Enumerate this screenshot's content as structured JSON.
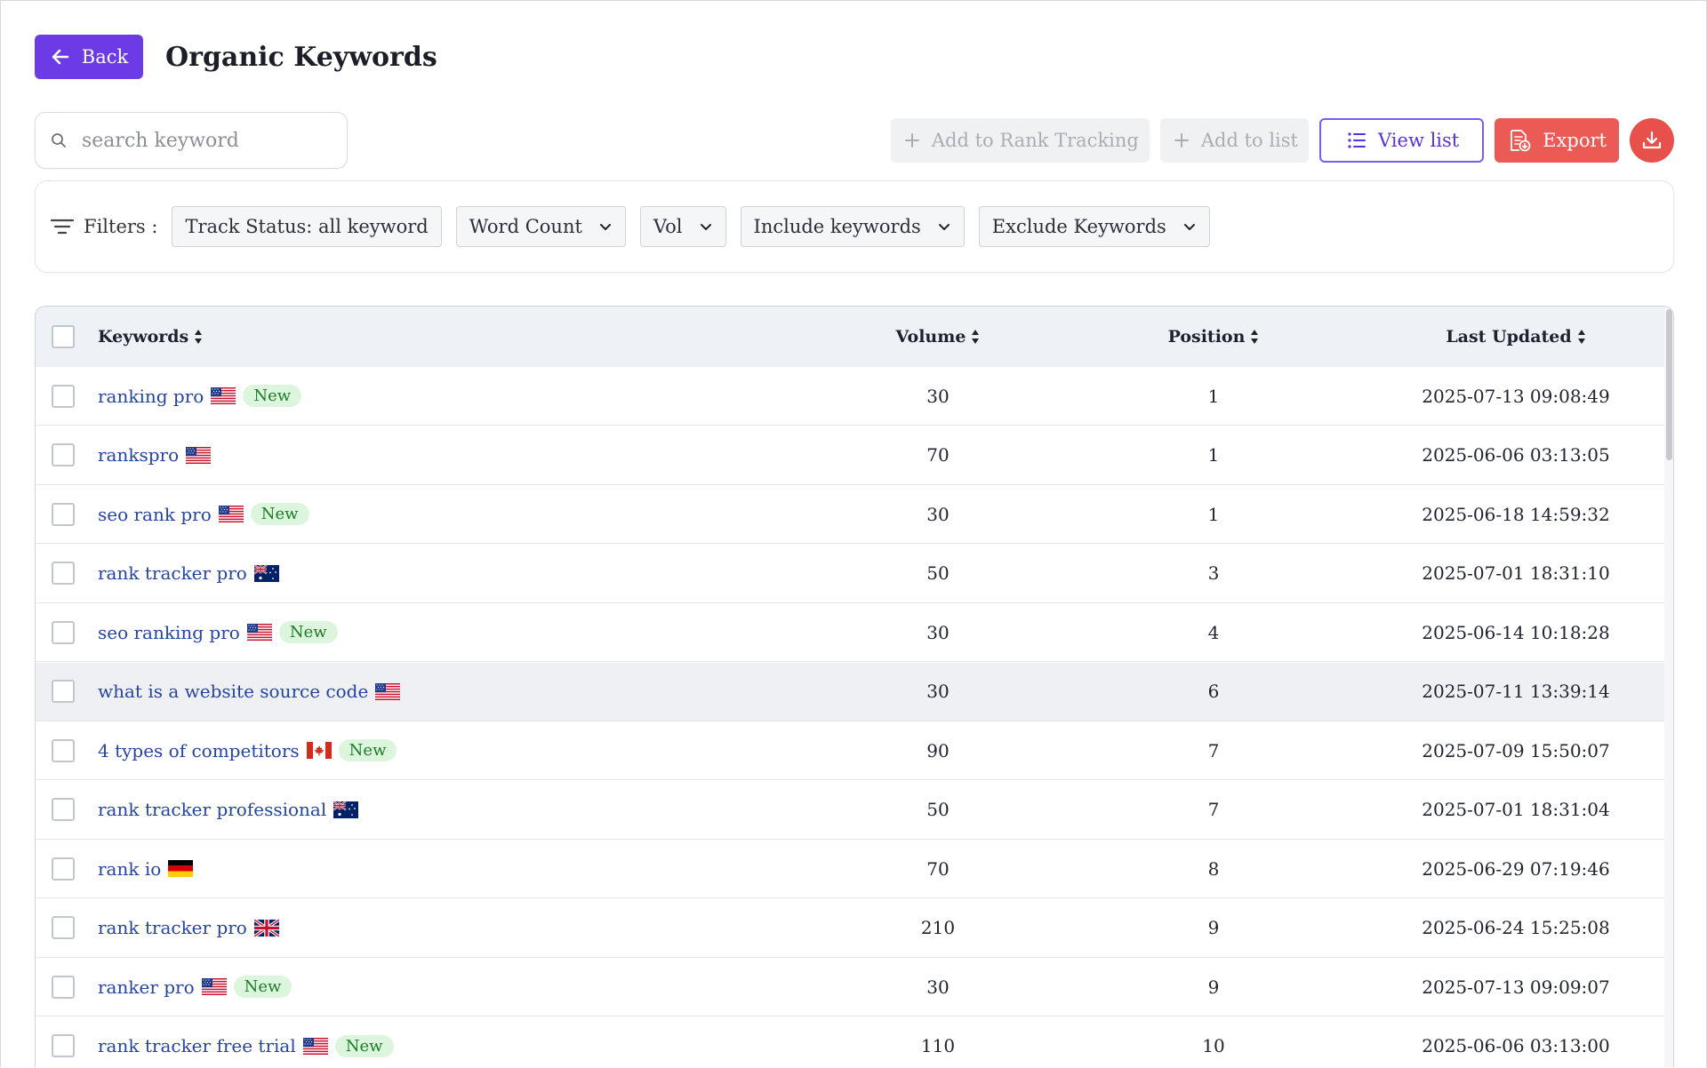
{
  "header": {
    "back_label": "Back",
    "title": "Organic Keywords"
  },
  "search": {
    "placeholder": "search keyword",
    "value": ""
  },
  "toolbar": {
    "add_rank_label": "Add to Rank Tracking",
    "add_list_label": "Add to list",
    "view_list_label": "View list",
    "export_label": "Export"
  },
  "filters": {
    "label": "Filters :",
    "track_status": "Track Status: all keyword",
    "word_count": "Word Count",
    "vol": "Vol",
    "include": "Include keywords",
    "exclude": "Exclude Keywords"
  },
  "table": {
    "columns": {
      "keywords": "Keywords",
      "volume": "Volume",
      "position": "Position",
      "last_updated": "Last Updated"
    },
    "rows": [
      {
        "keyword": "ranking pro",
        "flag": "us",
        "badge": "New",
        "volume": "30",
        "position": "1",
        "updated": "2025-07-13 09:08:49"
      },
      {
        "keyword": "rankspro",
        "flag": "us",
        "badge": "",
        "volume": "70",
        "position": "1",
        "updated": "2025-06-06 03:13:05"
      },
      {
        "keyword": "seo rank pro",
        "flag": "us",
        "badge": "New",
        "volume": "30",
        "position": "1",
        "updated": "2025-06-18 14:59:32"
      },
      {
        "keyword": "rank tracker pro",
        "flag": "au",
        "badge": "",
        "volume": "50",
        "position": "3",
        "updated": "2025-07-01 18:31:10"
      },
      {
        "keyword": "seo ranking pro",
        "flag": "us",
        "badge": "New",
        "volume": "30",
        "position": "4",
        "updated": "2025-06-14 10:18:28"
      },
      {
        "keyword": "what is a website source code",
        "flag": "us",
        "badge": "",
        "volume": "30",
        "position": "6",
        "updated": "2025-07-11 13:39:14"
      },
      {
        "keyword": "4 types of competitors",
        "flag": "ca",
        "badge": "New",
        "volume": "90",
        "position": "7",
        "updated": "2025-07-09 15:50:07"
      },
      {
        "keyword": "rank tracker professional",
        "flag": "au",
        "badge": "",
        "volume": "50",
        "position": "7",
        "updated": "2025-07-01 18:31:04"
      },
      {
        "keyword": "rank io",
        "flag": "de",
        "badge": "",
        "volume": "70",
        "position": "8",
        "updated": "2025-06-29 07:19:46"
      },
      {
        "keyword": "rank tracker pro",
        "flag": "gb",
        "badge": "",
        "volume": "210",
        "position": "9",
        "updated": "2025-06-24 15:25:08"
      },
      {
        "keyword": "ranker pro",
        "flag": "us",
        "badge": "New",
        "volume": "30",
        "position": "9",
        "updated": "2025-07-13 09:09:07"
      },
      {
        "keyword": "rank tracker free trial",
        "flag": "us",
        "badge": "New",
        "volume": "110",
        "position": "10",
        "updated": "2025-06-06 03:13:00"
      }
    ]
  },
  "colors": {
    "accent": "#6d3be6",
    "export": "#ec5a55",
    "link": "#2644a0",
    "badge_bg": "#dcf5dd"
  }
}
